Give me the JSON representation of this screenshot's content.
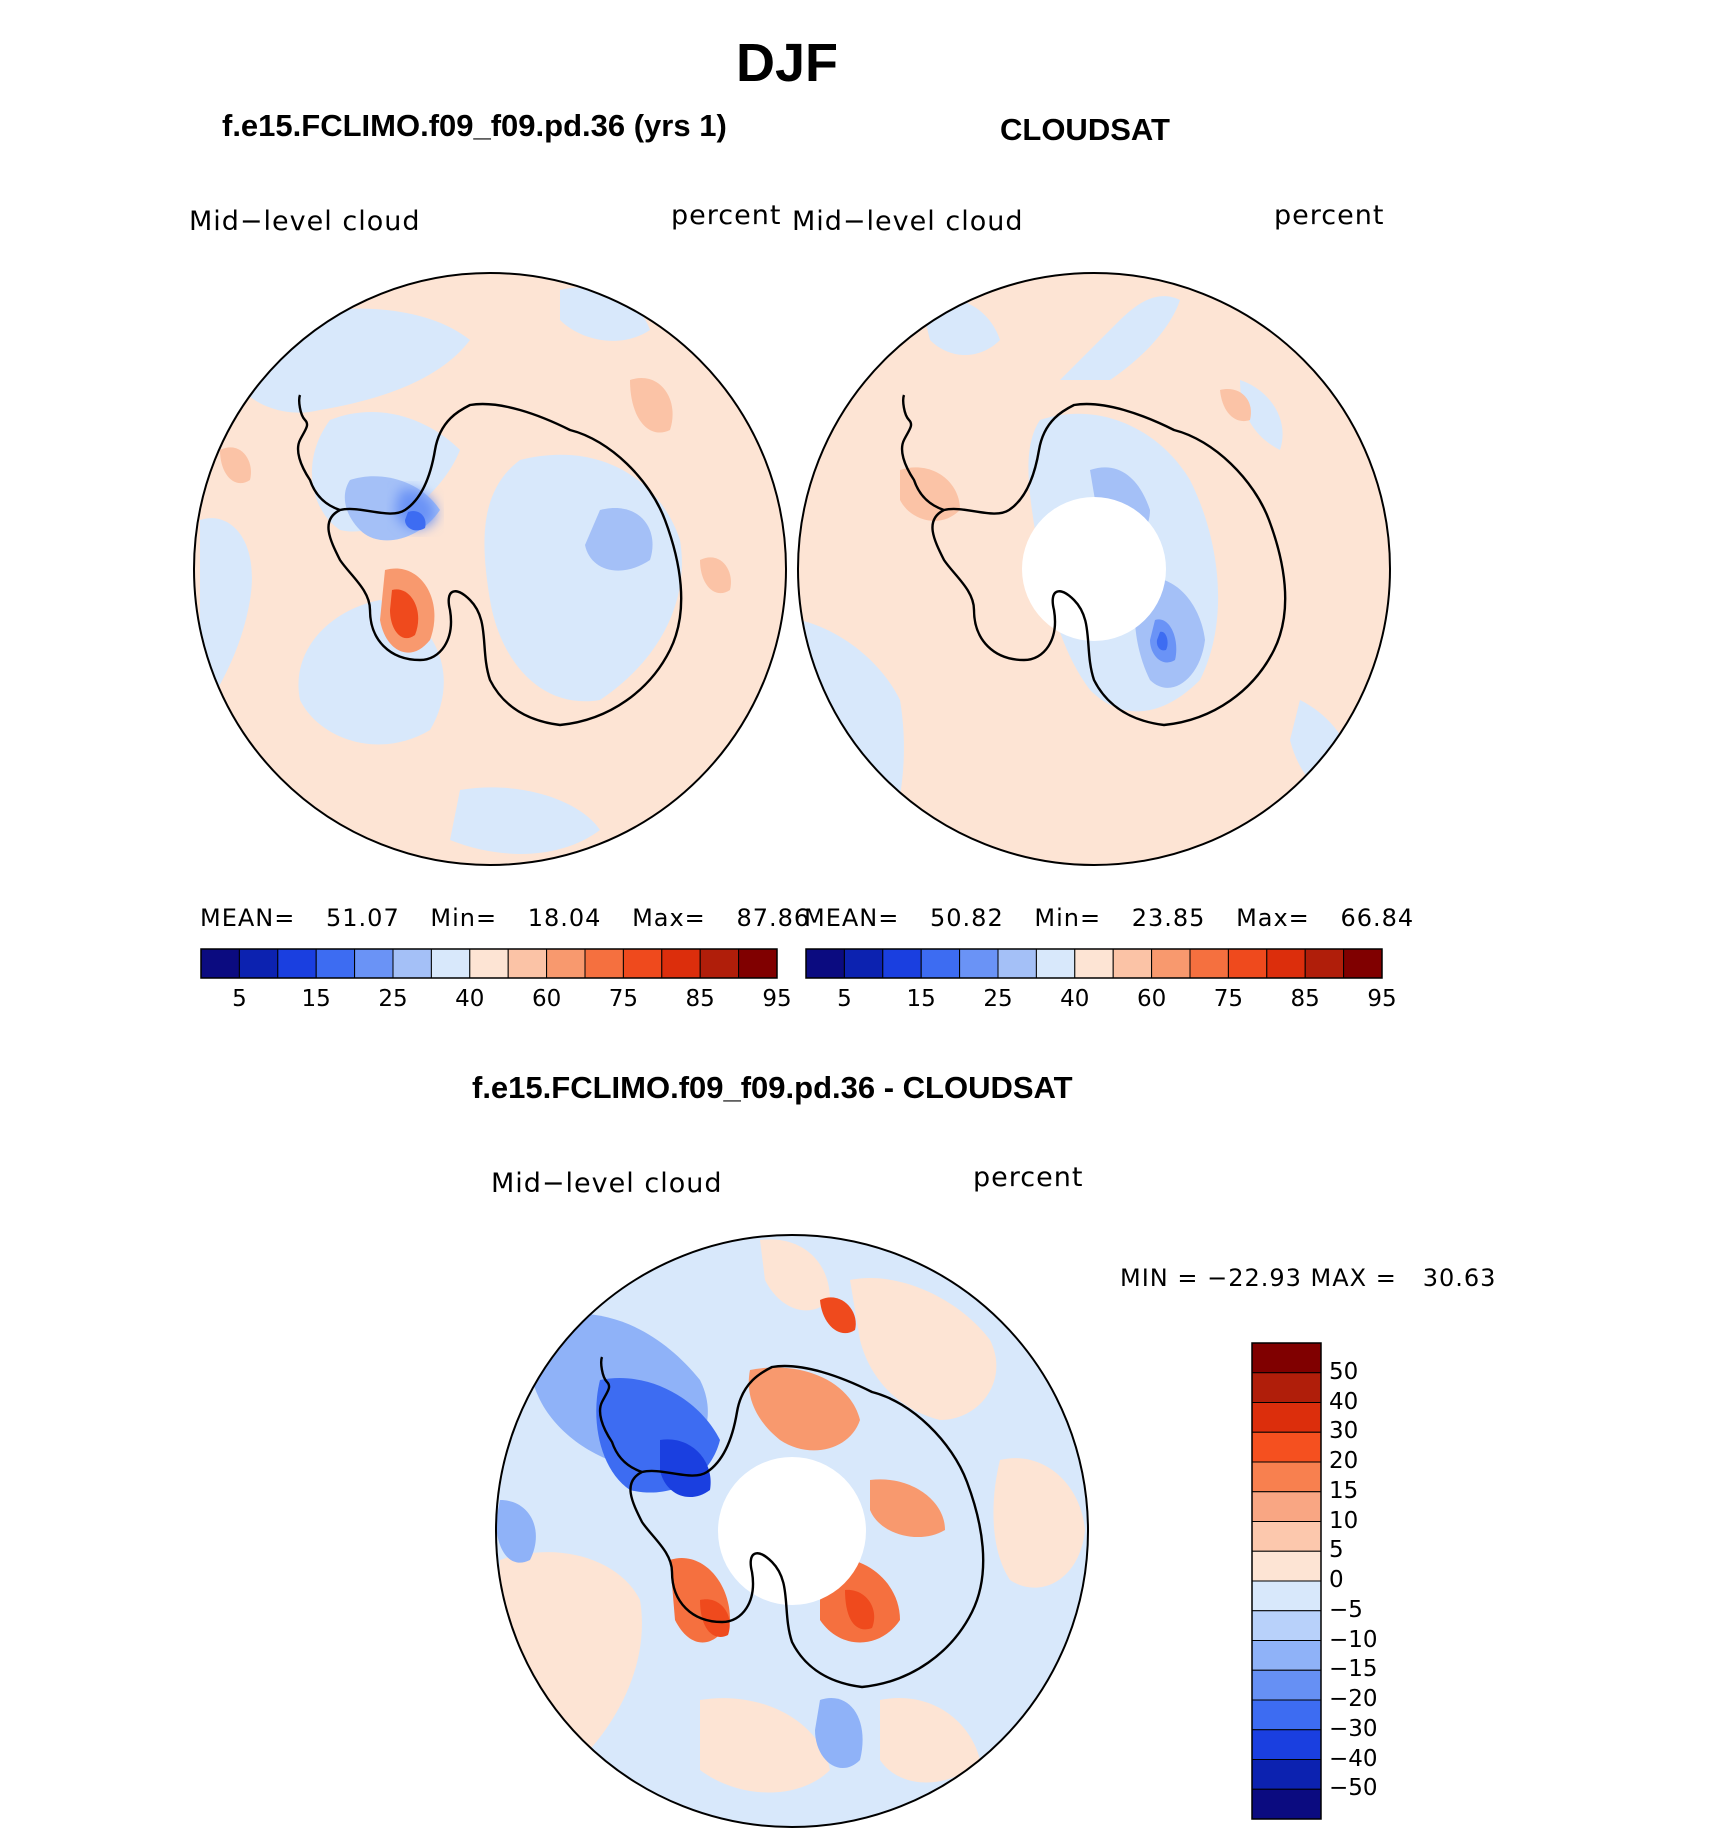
{
  "figure": {
    "title": "DJF"
  },
  "panels": [
    {
      "title": "f.e15.FCLIMO.f09_f09.pd.36 (yrs 1)",
      "variable": "Mid−level cloud",
      "units": "percent",
      "mean_label": "MEAN=",
      "mean": "51.07",
      "min_label": "Min=",
      "min": "18.04",
      "max_label": "Max=",
      "max": "87.86"
    },
    {
      "title": "CLOUDSAT",
      "variable": "Mid−level cloud",
      "units": "percent",
      "mean_label": "MEAN=",
      "mean": "50.82",
      "min_label": "Min=",
      "min": "23.85",
      "max_label": "Max=",
      "max": "66.84"
    },
    {
      "title": "f.e15.FCLIMO.f09_f09.pd.36 - CLOUDSAT",
      "variable": "Mid−level cloud",
      "units": "percent",
      "minmax_text": "MIN = −22.93 MAX =   30.63"
    }
  ],
  "chart_data": {
    "type": "heatmap",
    "projection": "south polar stereographic",
    "season": "DJF",
    "absolute_colorbar": {
      "tick_labels": [
        "5",
        "15",
        "25",
        "40",
        "60",
        "75",
        "85",
        "95"
      ],
      "colors": [
        "#0b0b80",
        "#0c22b0",
        "#1a3fe0",
        "#3d6cf2",
        "#6a93f6",
        "#a4c0f7",
        "#d8e8fb",
        "#fde4d4",
        "#fbc3a6",
        "#f8996e",
        "#f5703f",
        "#ef4a1d",
        "#dc2e0c",
        "#b01e0a",
        "#800000"
      ]
    },
    "difference_colorbar": {
      "tick_labels": [
        "50",
        "40",
        "30",
        "20",
        "15",
        "10",
        "5",
        "0",
        "−5",
        "−10",
        "−15",
        "−20",
        "−30",
        "−40",
        "−50"
      ],
      "colors": [
        "#800000",
        "#b01e0a",
        "#dc2e0c",
        "#f5501f",
        "#f8804f",
        "#f9a683",
        "#fcc8ad",
        "#fde4d4",
        "#d8e8fb",
        "#b8d1fa",
        "#8fb2f8",
        "#6690f4",
        "#3d6cf2",
        "#1a3fe0",
        "#0c22b0",
        "#0b0b80"
      ]
    },
    "panel_stats": [
      {
        "name": "model",
        "mean": 51.07,
        "min": 18.04,
        "max": 87.86
      },
      {
        "name": "CLOUDSAT",
        "mean": 50.82,
        "min": 23.85,
        "max": 66.84
      },
      {
        "name": "difference",
        "min": -22.93,
        "max": 30.63
      }
    ]
  }
}
